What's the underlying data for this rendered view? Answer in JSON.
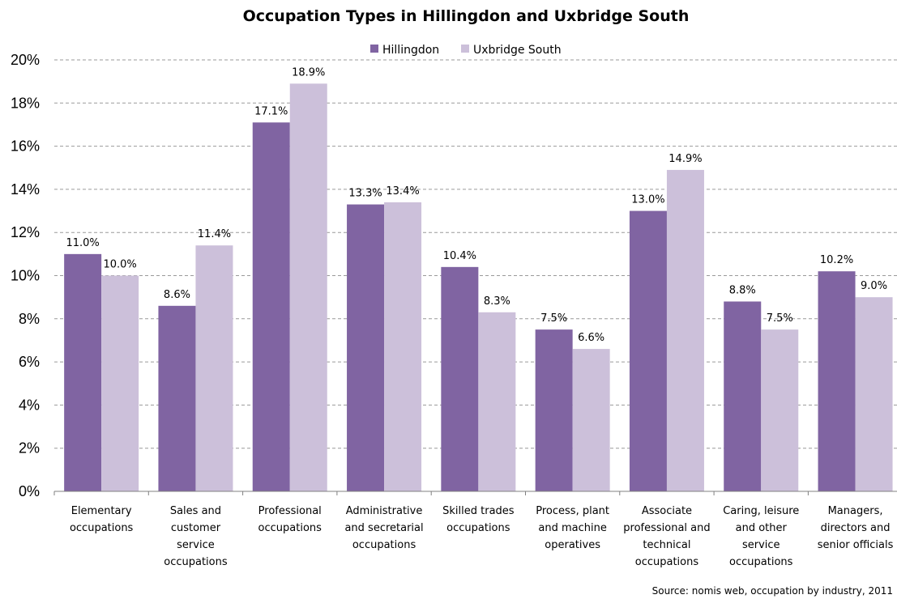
{
  "chart_data": {
    "type": "bar",
    "title": "Occupation Types in Hillingdon and Uxbridge South",
    "categories": [
      [
        "Elementary",
        "occupations"
      ],
      [
        "Sales and",
        "customer",
        "service",
        "occupations"
      ],
      [
        "Professional",
        "occupations"
      ],
      [
        "Administrative",
        "and secretarial",
        "occupations"
      ],
      [
        "Skilled trades",
        "occupations"
      ],
      [
        "Process, plant",
        "and machine",
        "operatives"
      ],
      [
        "Associate",
        "professional and",
        "technical",
        "occupations"
      ],
      [
        "Caring, leisure",
        "and other",
        "service",
        "occupations"
      ],
      [
        "Managers,",
        "directors and",
        "senior officials"
      ]
    ],
    "series": [
      {
        "name": "Hillingdon",
        "color": "#8064a2",
        "values": [
          11.0,
          8.6,
          17.1,
          13.3,
          10.4,
          7.5,
          13.0,
          8.8,
          10.2
        ],
        "labels": [
          "11.0%",
          "8.6%",
          "17.1%",
          "13.3%",
          "10.4%",
          "7.5%",
          "13.0%",
          "8.8%",
          "10.2%"
        ]
      },
      {
        "name": "Uxbridge South",
        "color": "#ccc0da",
        "values": [
          10.0,
          11.4,
          18.9,
          13.4,
          8.3,
          6.6,
          14.9,
          7.5,
          9.0
        ],
        "labels": [
          "10.0%",
          "11.4%",
          "18.9%",
          "13.4%",
          "8.3%",
          "6.6%",
          "14.9%",
          "7.5%",
          "9.0%"
        ]
      }
    ],
    "ylim": [
      0,
      20
    ],
    "yticks": [
      "0%",
      "2%",
      "4%",
      "6%",
      "8%",
      "10%",
      "12%",
      "14%",
      "16%",
      "18%",
      "20%"
    ],
    "grid": true,
    "grid_style": "dashed",
    "legend_position": "top",
    "xlabel": "",
    "ylabel": "",
    "source": "Source: nomis web, occupation by industry, 2011"
  }
}
